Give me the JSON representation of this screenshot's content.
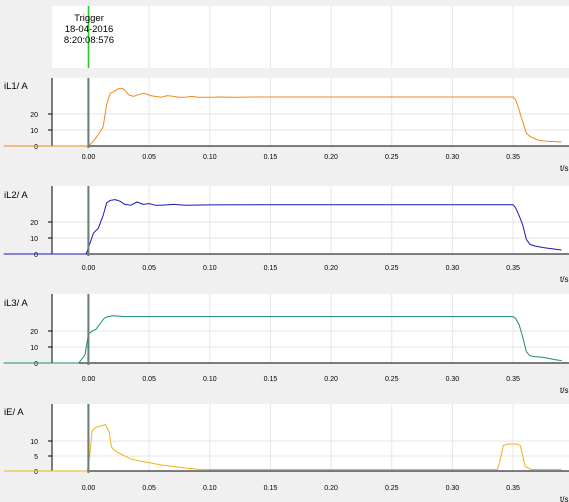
{
  "trigger": {
    "label": "Trigger",
    "date": "18-04-2016",
    "time": "8:20:08:576"
  },
  "colors": {
    "trigger_line": "#22cc22",
    "cursor_line": "#9a4fb0",
    "background": "#f0f0f0",
    "plot_area": "#ffffff",
    "grid": "#e6e6e6"
  },
  "x_axis": {
    "unit_label": "t/s",
    "ticks": [
      0.0,
      0.05,
      0.1,
      0.15,
      0.2,
      0.25,
      0.3,
      0.35
    ],
    "tick_labels": [
      "0.00",
      "0.05",
      "0.10",
      "0.15",
      "0.20",
      "0.25",
      "0.30",
      "0.35"
    ]
  },
  "chart_data": [
    {
      "type": "line",
      "title": "",
      "ylabel": "iL1/ A",
      "xlabel": "t/s",
      "xlim": [
        -0.07,
        0.39
      ],
      "ylim": [
        0,
        40
      ],
      "yticks": [
        0,
        10,
        20
      ],
      "grid": true,
      "series": [
        {
          "color": "#f08a1c",
          "x": [
            -0.07,
            0.0,
            0.004,
            0.008,
            0.012,
            0.015,
            0.018,
            0.021,
            0.025,
            0.028,
            0.03,
            0.033,
            0.037,
            0.041,
            0.045,
            0.048,
            0.051,
            0.055,
            0.06,
            0.065,
            0.07,
            0.075,
            0.08,
            0.085,
            0.09,
            0.1,
            0.11,
            0.12,
            0.14,
            0.2,
            0.3,
            0.35,
            0.352,
            0.354,
            0.356,
            0.358,
            0.361,
            0.364,
            0.368,
            0.372,
            0.378,
            0.39
          ],
          "y": [
            0,
            0,
            3,
            7,
            12,
            26,
            33,
            34,
            36,
            36,
            35,
            32,
            31,
            32,
            33,
            32.5,
            31.5,
            31,
            30.5,
            31.5,
            31,
            30.5,
            30.5,
            31,
            30.5,
            30.5,
            30.6,
            30.5,
            30.6,
            30.6,
            30.6,
            30.6,
            29,
            25,
            20,
            15,
            8,
            6,
            4.5,
            3.5,
            3,
            2.5
          ]
        }
      ]
    },
    {
      "type": "line",
      "title": "",
      "ylabel": "iL2/ A",
      "xlabel": "t/s",
      "xlim": [
        -0.07,
        0.39
      ],
      "ylim": [
        0,
        40
      ],
      "yticks": [
        0,
        10,
        20
      ],
      "grid": true,
      "series": [
        {
          "color": "#1a1ab4",
          "x": [
            -0.07,
            -0.002,
            0.0,
            0.004,
            0.008,
            0.012,
            0.015,
            0.018,
            0.022,
            0.026,
            0.03,
            0.035,
            0.04,
            0.045,
            0.05,
            0.055,
            0.06,
            0.07,
            0.08,
            0.1,
            0.14,
            0.2,
            0.3,
            0.35,
            0.352,
            0.355,
            0.358,
            0.361,
            0.364,
            0.368,
            0.375,
            0.39
          ],
          "y": [
            0,
            0,
            4,
            13,
            16,
            24,
            32,
            33.5,
            34,
            33,
            31,
            30.5,
            32.5,
            31,
            31.5,
            30.5,
            30.5,
            31,
            30.5,
            30.7,
            30.8,
            30.8,
            30.8,
            30.8,
            29,
            24,
            18,
            9,
            6,
            5,
            4,
            2.5
          ]
        }
      ]
    },
    {
      "type": "line",
      "title": "",
      "ylabel": "iL3/ A",
      "xlabel": "t/s",
      "xlim": [
        -0.07,
        0.39
      ],
      "ylim": [
        0,
        40
      ],
      "yticks": [
        0,
        10,
        20
      ],
      "grid": true,
      "series": [
        {
          "color": "#1b8a7a",
          "x": [
            -0.07,
            -0.008,
            -0.003,
            0.0,
            0.003,
            0.006,
            0.01,
            0.013,
            0.016,
            0.02,
            0.025,
            0.03,
            0.05,
            0.1,
            0.2,
            0.3,
            0.35,
            0.352,
            0.355,
            0.358,
            0.361,
            0.364,
            0.368,
            0.375,
            0.385,
            0.39
          ],
          "y": [
            0,
            0,
            5,
            18,
            20,
            21,
            25,
            28,
            29,
            29.5,
            29.3,
            29,
            29,
            29,
            29,
            29,
            29,
            28,
            24,
            16,
            7,
            4.5,
            4,
            3.5,
            2,
            1.5
          ]
        }
      ]
    },
    {
      "type": "line",
      "title": "",
      "ylabel": "iE/ A",
      "xlabel": "t/s",
      "xlim": [
        -0.07,
        0.39
      ],
      "ylim": [
        0,
        18
      ],
      "yticks": [
        0,
        5,
        10
      ],
      "grid": true,
      "series": [
        {
          "color": "#f2b21a",
          "x": [
            -0.07,
            -0.001,
            0.001,
            0.003,
            0.006,
            0.01,
            0.014,
            0.017,
            0.019,
            0.021,
            0.025,
            0.03,
            0.035,
            0.04,
            0.05,
            0.06,
            0.07,
            0.08,
            0.09,
            0.1,
            0.15,
            0.2,
            0.3,
            0.337,
            0.339,
            0.342,
            0.346,
            0.35,
            0.353,
            0.356,
            0.36,
            0.365,
            0.39
          ],
          "y": [
            0,
            0,
            5,
            13.5,
            14.5,
            15,
            15.5,
            13,
            8,
            7,
            6,
            5,
            4,
            3.5,
            2.8,
            2,
            1.5,
            1,
            0.6,
            0.5,
            0.5,
            0.5,
            0.5,
            0.5,
            3,
            8.5,
            9,
            9,
            9,
            8.5,
            1.5,
            0.5,
            0.5
          ]
        }
      ]
    }
  ]
}
